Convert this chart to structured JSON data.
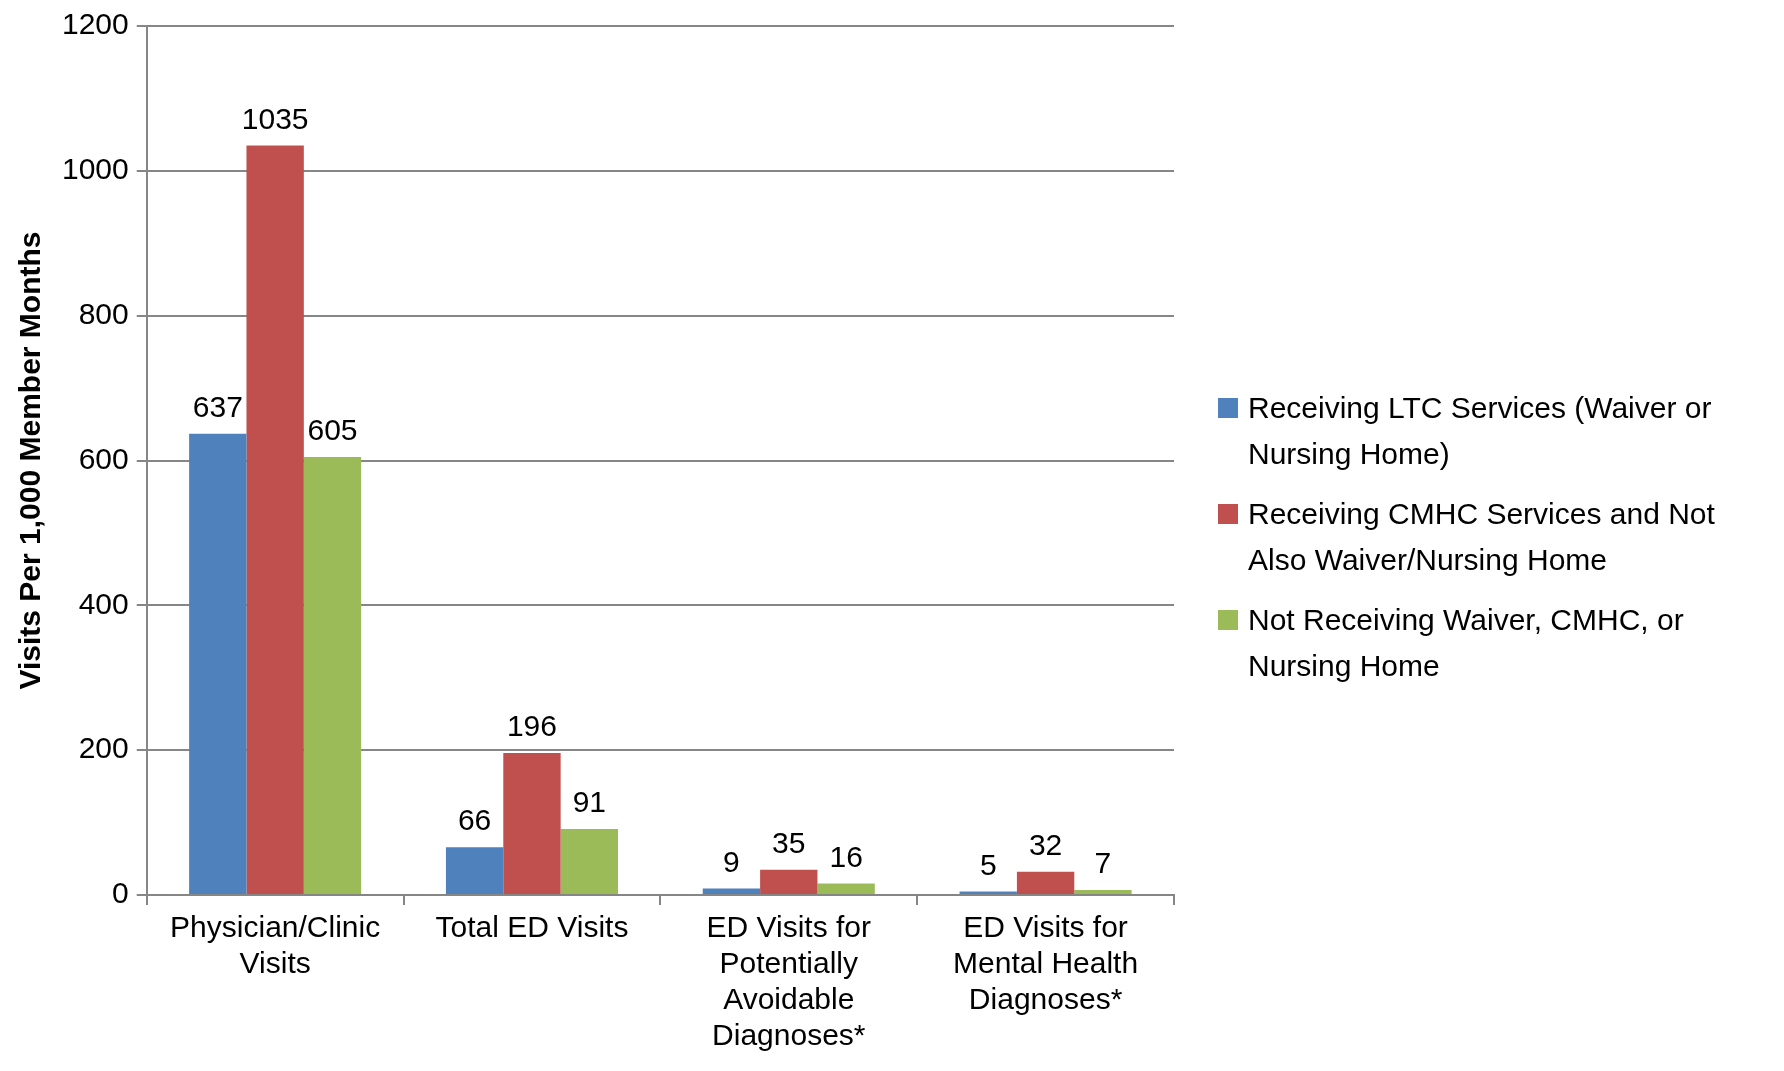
{
  "chart_data": {
    "type": "bar",
    "ylabel": "Visits Per 1,000 Member Months",
    "categories": [
      "Physician/Clinic Visits",
      "Total ED Visits",
      "ED Visits for Potentially Avoidable Diagnoses*",
      "ED Visits for Mental Health Diagnoses*"
    ],
    "series": [
      {
        "name": "Receiving LTC Services (Waiver or Nursing Home)",
        "color": "#4f81bd",
        "values": [
          637,
          66,
          9,
          5
        ]
      },
      {
        "name": "Receiving CMHC Services and Not Also Waiver/Nursing Home",
        "color": "#c0504d",
        "values": [
          1035,
          196,
          35,
          32
        ]
      },
      {
        "name": "Not Receiving Waiver, CMHC, or Nursing Home",
        "color": "#9bbb59",
        "values": [
          605,
          91,
          16,
          7
        ]
      }
    ],
    "ylim": [
      0,
      1200
    ],
    "yticks": [
      0,
      200,
      400,
      600,
      800,
      1000,
      1200
    ],
    "grid": "y",
    "legend": "right",
    "data_labels": true
  }
}
